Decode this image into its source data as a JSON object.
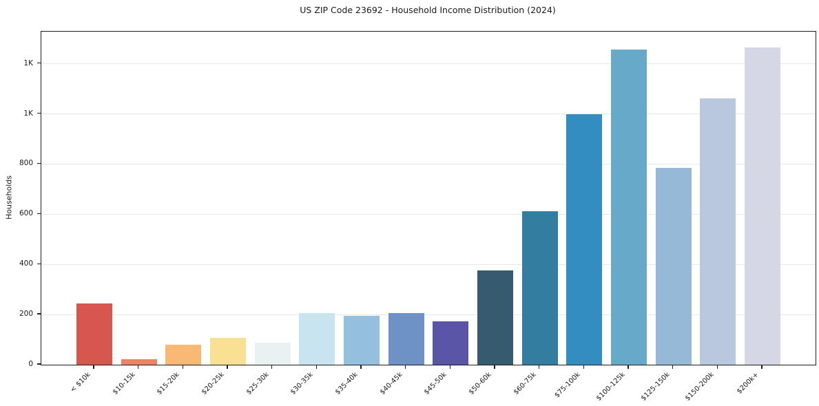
{
  "chart_data": {
    "type": "bar",
    "title": "US ZIP Code 23692 - Household Income Distribution (2024)",
    "ylabel": "Households",
    "xlabel": "",
    "categories": [
      "< $10k",
      "$10-15k",
      "$15-20k",
      "$20-25k",
      "$25-30k",
      "$30-35k",
      "$35-40k",
      "$40-45k",
      "$45-50k",
      "$50-60k",
      "$60-75k",
      "$75-100k",
      "$100-125k",
      "$125-150k",
      "$150-200k",
      "$200k+"
    ],
    "values": [
      245,
      22,
      79,
      108,
      87,
      205,
      194,
      206,
      172,
      376,
      613,
      1000,
      1258,
      786,
      1063,
      1264
    ],
    "bar_colors": [
      "#d7564e",
      "#ed8265",
      "#f9b873",
      "#fae092",
      "#e9f2f1",
      "#c8e4ee",
      "#94bfde",
      "#6e92c6",
      "#5b55a7",
      "#375b6e",
      "#337ea0",
      "#348dc0",
      "#66a9c9",
      "#96b9d8",
      "#b9c7df",
      "#d6d7e4"
    ],
    "yticks": [
      {
        "label": "0",
        "value": 0
      },
      {
        "label": "200",
        "value": 200
      },
      {
        "label": "400",
        "value": 400
      },
      {
        "label": "600",
        "value": 600
      },
      {
        "label": "800",
        "value": 800
      },
      {
        "label": "1K",
        "value": 1000
      },
      {
        "label": "1K",
        "value": 1200
      }
    ],
    "ylim": [
      0,
      1328
    ],
    "grid": "horizontal",
    "legend": "none",
    "x_tick_rotation": 45
  }
}
